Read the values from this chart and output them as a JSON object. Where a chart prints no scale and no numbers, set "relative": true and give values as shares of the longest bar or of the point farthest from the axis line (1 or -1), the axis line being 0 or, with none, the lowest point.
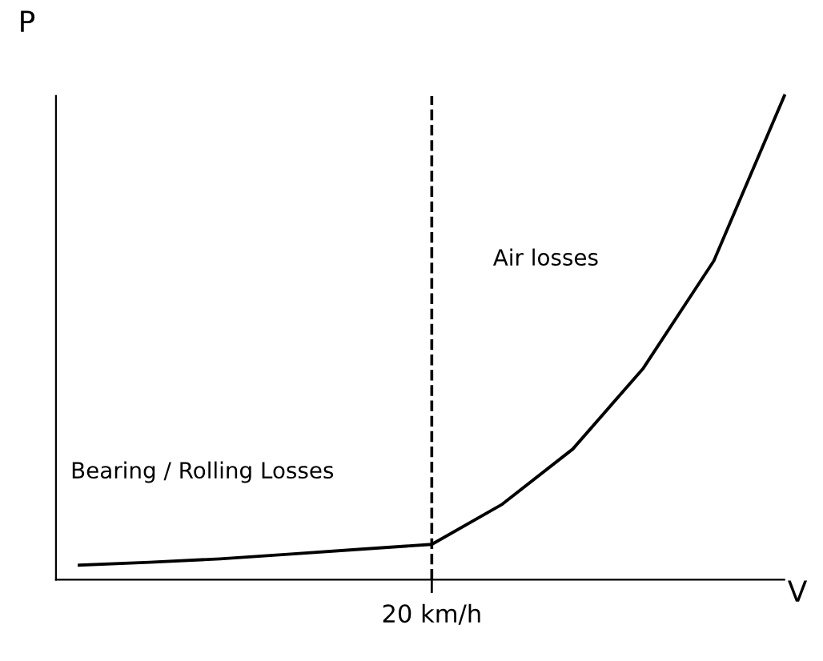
{
  "chart_data": {
    "type": "line",
    "relative": true,
    "xlabel": "V",
    "ylabel": "P",
    "categories": [
      null,
      null,
      null,
      null,
      null,
      null,
      null,
      null,
      null,
      null,
      null
    ],
    "series": [
      {
        "color": "#000000",
        "values": [
          0.03,
          0.036,
          0.043,
          0.053,
          0.063,
          0.073,
          0.156,
          0.27,
          0.437,
          0.659,
          1.0
        ]
      }
    ],
    "annotations": [
      "Bearing / Rolling Losses",
      "Air losses",
      "20 km/h"
    ],
    "grid": false,
    "legend": false,
    "marker": "none",
    "line_style": "solid"
  }
}
